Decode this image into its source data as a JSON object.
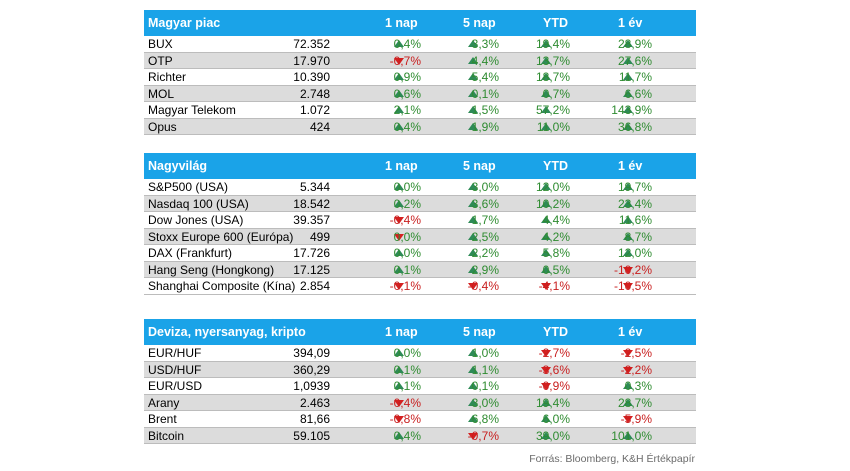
{
  "columns": [
    "1 nap",
    "5 nap",
    "YTD",
    "1 év"
  ],
  "colors": {
    "header": "#1aa3e8",
    "up": "#2e8b57",
    "down": "#d42020"
  },
  "sections": [
    {
      "title": "Magyar piac",
      "rows": [
        {
          "name": "BUX",
          "last": "72.352",
          "d1": "0,4%",
          "d5": "3,3%",
          "ytd": "19,4%",
          "y1": "28,9%",
          "dir": [
            "up",
            "up",
            "up",
            "up"
          ]
        },
        {
          "name": "OTP",
          "last": "17.970",
          "d1": "-0,7%",
          "d5": "4,4%",
          "ytd": "13,7%",
          "y1": "27,6%",
          "dir": [
            "down",
            "up",
            "up",
            "up"
          ]
        },
        {
          "name": "Richter",
          "last": "10.390",
          "d1": "0,9%",
          "d5": "5,4%",
          "ytd": "18,7%",
          "y1": "11,7%",
          "dir": [
            "up",
            "up",
            "up",
            "up"
          ]
        },
        {
          "name": "MOL",
          "last": "2.748",
          "d1": "0,6%",
          "d5": "0,1%",
          "ytd": "0,7%",
          "y1": "6,6%",
          "dir": [
            "up",
            "up",
            "up",
            "up"
          ]
        },
        {
          "name": "Magyar Telekom",
          "last": "1.072",
          "d1": "2,1%",
          "d5": "1,5%",
          "ytd": "57,2%",
          "y1": "143,9%",
          "dir": [
            "up",
            "up",
            "up",
            "up"
          ]
        },
        {
          "name": "Opus",
          "last": "424",
          "d1": "0,4%",
          "d5": "1,9%",
          "ytd": "11,0%",
          "y1": "36,8%",
          "dir": [
            "up",
            "up",
            "up",
            "up"
          ]
        }
      ]
    },
    {
      "title": "Nagyvilág",
      "rows": [
        {
          "name": "S&P500 (USA)",
          "last": "5.344",
          "d1": "0,0%",
          "d5": "3,0%",
          "ytd": "12,0%",
          "y1": "19,7%",
          "dir": [
            "up",
            "up",
            "up",
            "up"
          ]
        },
        {
          "name": "Nasdaq 100 (USA)",
          "last": "18.542",
          "d1": "0,2%",
          "d5": "3,6%",
          "ytd": "10,2%",
          "y1": "23,4%",
          "dir": [
            "up",
            "up",
            "up",
            "up"
          ]
        },
        {
          "name": "Dow Jones (USA)",
          "last": "39.357",
          "d1": "-0,4%",
          "d5": "1,7%",
          "ytd": "4,4%",
          "y1": "11,6%",
          "dir": [
            "down",
            "up",
            "up",
            "up"
          ]
        },
        {
          "name": "Stoxx Europe 600 (Európa)",
          "last": "499",
          "d1": "0,0%",
          "d5": "2,5%",
          "ytd": "4,2%",
          "y1": "8,7%",
          "dir": [
            "down",
            "up",
            "up",
            "up"
          ]
        },
        {
          "name": "DAX (Frankfurt)",
          "last": "17.726",
          "d1": "0,0%",
          "d5": "2,2%",
          "ytd": "5,8%",
          "y1": "12,0%",
          "dir": [
            "up",
            "up",
            "up",
            "up"
          ]
        },
        {
          "name": "Hang Seng (Hongkong)",
          "last": "17.125",
          "d1": "0,1%",
          "d5": "2,9%",
          "ytd": "0,5%",
          "y1": "-10,2%",
          "dir": [
            "up",
            "up",
            "up",
            "down"
          ]
        },
        {
          "name": "Shanghai Composite (Kína)",
          "last": "2.854",
          "d1": "-0,1%",
          "d5": "-0,4%",
          "ytd": "-4,1%",
          "y1": "-10,5%",
          "dir": [
            "down",
            "down",
            "down",
            "down"
          ]
        }
      ]
    },
    {
      "title": "Deviza, nyersanyag, kripto",
      "rows": [
        {
          "name": "EUR/HUF",
          "last": "394,09",
          "d1": "0,0%",
          "d5": "1,0%",
          "ytd": "-2,7%",
          "y1": "-2,5%",
          "dir": [
            "up",
            "up",
            "down",
            "down"
          ]
        },
        {
          "name": "USD/HUF",
          "last": "360,29",
          "d1": "0,1%",
          "d5": "1,1%",
          "ytd": "-3,6%",
          "y1": "-2,2%",
          "dir": [
            "up",
            "up",
            "down",
            "down"
          ]
        },
        {
          "name": "EUR/USD",
          "last": "1,0939",
          "d1": "0,1%",
          "d5": "0,1%",
          "ytd": "-0,9%",
          "y1": "0,3%",
          "dir": [
            "up",
            "up",
            "down",
            "up"
          ]
        },
        {
          "name": "Arany",
          "last": "2.463",
          "d1": "-0,4%",
          "d5": "3,0%",
          "ytd": "19,4%",
          "y1": "28,7%",
          "dir": [
            "down",
            "up",
            "up",
            "up"
          ]
        },
        {
          "name": "Brent",
          "last": "81,66",
          "d1": "-0,8%",
          "d5": "6,8%",
          "ytd": "6,0%",
          "y1": "-5,9%",
          "dir": [
            "down",
            "up",
            "up",
            "down"
          ]
        },
        {
          "name": "Bitcoin",
          "last": "59.105",
          "d1": "0,4%",
          "d5": "-0,7%",
          "ytd": "39,0%",
          "y1": "101,0%",
          "dir": [
            "up",
            "down",
            "up",
            "up"
          ]
        }
      ]
    }
  ],
  "source": "Forrás: Bloomberg, K&H Értékpapír"
}
